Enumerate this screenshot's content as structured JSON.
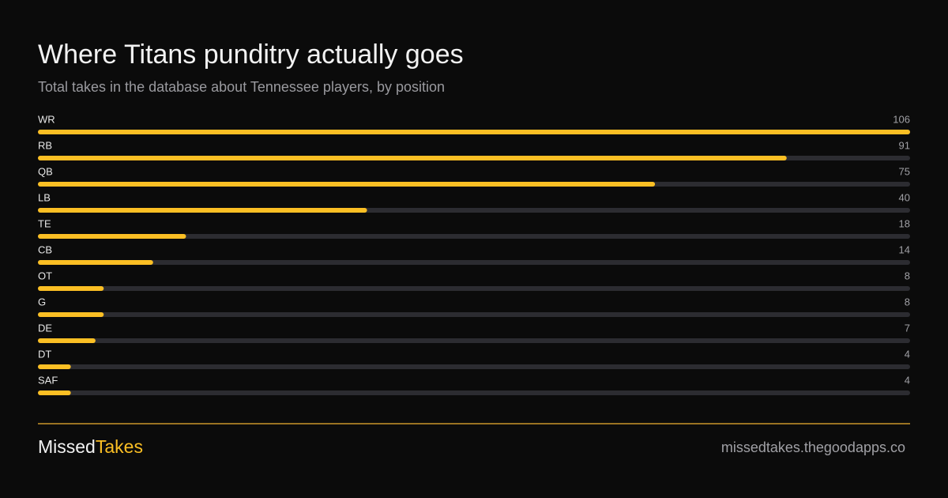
{
  "chart_data": {
    "type": "bar",
    "orientation": "horizontal",
    "title": "Where Titans punditry actually goes",
    "subtitle": "Total takes in the database about Tennessee players, by position",
    "categories": [
      "WR",
      "RB",
      "QB",
      "LB",
      "TE",
      "CB",
      "OT",
      "G",
      "DE",
      "DT",
      "SAF"
    ],
    "values": [
      106,
      91,
      75,
      40,
      18,
      14,
      8,
      8,
      7,
      4,
      4
    ],
    "color": "#fbbf24",
    "track_color": "#2c2c31",
    "xlim": [
      0,
      106
    ]
  },
  "footer": {
    "brand_primary": "Missed",
    "brand_accent": "Takes",
    "url": "missedtakes.thegoodapps.co"
  }
}
